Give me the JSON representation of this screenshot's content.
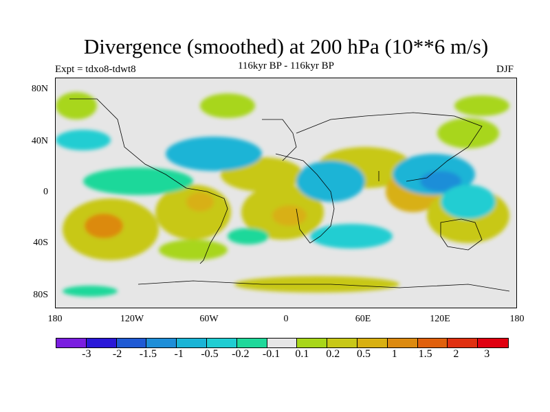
{
  "header": {
    "title": "Divergence (smoothed) at 200 hPa (10**6 m/s)",
    "expt": "Expt = tdxo8-tdwt8",
    "subtitle": "116kyr BP - 116kyr BP",
    "season": "DJF"
  },
  "map": {
    "lat_labels": [
      "80N",
      "40N",
      "0",
      "40S",
      "80S"
    ],
    "lon_labels": [
      "180",
      "120W",
      "60W",
      "0",
      "60E",
      "120E",
      "180"
    ]
  },
  "colorbar": {
    "colors": [
      "#7a1ee0",
      "#2a18d8",
      "#1f5ad4",
      "#1e8ed8",
      "#1ab4d6",
      "#20cdd2",
      "#1fd89a",
      "#e6e6e6",
      "#a8d61a",
      "#c8c818",
      "#d8b012",
      "#dc8a10",
      "#e0600c",
      "#e03010",
      "#e00010"
    ],
    "labels": [
      "-3",
      "-2",
      "-1.5",
      "-1",
      "-0.5",
      "-0.2",
      "-0.1",
      "0.1",
      "0.2",
      "0.5",
      "1",
      "1.5",
      "2",
      "3"
    ]
  }
}
